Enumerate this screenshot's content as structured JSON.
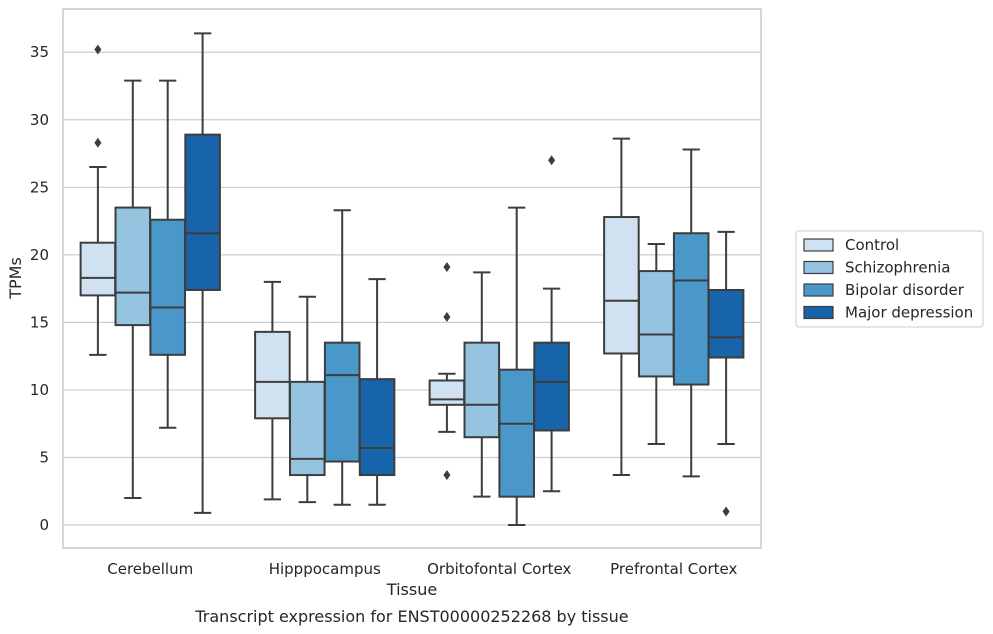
{
  "chart_data": {
    "type": "box",
    "xlabel": "Tissue",
    "ylabel": "TPMs",
    "caption": "Transcript expression for ENST00000252268 by tissue",
    "categories": [
      "Cerebellum",
      "Hipppocampus",
      "Orbitofontal Cortex",
      "Prefrontal Cortex"
    ],
    "ylim": [
      -1.7,
      38.2
    ],
    "yticks": [
      0,
      5,
      10,
      15,
      20,
      25,
      30,
      35
    ],
    "grid": "horizontal",
    "legend_position": "right",
    "series": [
      {
        "name": "Control",
        "color": "#d0e1f2",
        "boxes": [
          {
            "whislo": 12.6,
            "q1": 17.0,
            "med": 18.3,
            "q3": 20.9,
            "whishi": 26.5,
            "fliers": [
              28.3,
              35.2
            ]
          },
          {
            "whislo": 1.9,
            "q1": 7.9,
            "med": 10.6,
            "q3": 14.3,
            "whishi": 18.0,
            "fliers": []
          },
          {
            "whislo": 6.9,
            "q1": 8.9,
            "med": 9.3,
            "q3": 10.7,
            "whishi": 11.2,
            "fliers": [
              3.7,
              15.4,
              19.1
            ]
          },
          {
            "whislo": 3.7,
            "q1": 12.7,
            "med": 16.6,
            "q3": 22.8,
            "whishi": 28.6,
            "fliers": []
          }
        ]
      },
      {
        "name": "Schizophrenia",
        "color": "#94c4df",
        "boxes": [
          {
            "whislo": 2.0,
            "q1": 14.8,
            "med": 17.2,
            "q3": 23.5,
            "whishi": 32.9,
            "fliers": []
          },
          {
            "whislo": 1.7,
            "q1": 3.7,
            "med": 4.9,
            "q3": 10.6,
            "whishi": 16.9,
            "fliers": []
          },
          {
            "whislo": 2.1,
            "q1": 6.5,
            "med": 8.9,
            "q3": 13.5,
            "whishi": 18.7,
            "fliers": []
          },
          {
            "whislo": 6.0,
            "q1": 11.0,
            "med": 14.1,
            "q3": 18.8,
            "whishi": 20.8,
            "fliers": []
          }
        ]
      },
      {
        "name": "Bipolar disorder",
        "color": "#4a98c9",
        "boxes": [
          {
            "whislo": 7.2,
            "q1": 12.6,
            "med": 16.1,
            "q3": 22.6,
            "whishi": 32.9,
            "fliers": []
          },
          {
            "whislo": 1.5,
            "q1": 4.7,
            "med": 11.1,
            "q3": 13.5,
            "whishi": 23.3,
            "fliers": []
          },
          {
            "whislo": 0.0,
            "q1": 2.1,
            "med": 7.5,
            "q3": 11.5,
            "whishi": 23.5,
            "fliers": []
          },
          {
            "whislo": 3.6,
            "q1": 10.4,
            "med": 18.1,
            "q3": 21.6,
            "whishi": 27.8,
            "fliers": []
          }
        ]
      },
      {
        "name": "Major depression",
        "color": "#1764ab",
        "boxes": [
          {
            "whislo": 0.9,
            "q1": 17.4,
            "med": 21.6,
            "q3": 28.9,
            "whishi": 36.4,
            "fliers": []
          },
          {
            "whislo": 1.5,
            "q1": 3.7,
            "med": 5.7,
            "q3": 10.8,
            "whishi": 18.2,
            "fliers": []
          },
          {
            "whislo": 2.5,
            "q1": 7.0,
            "med": 10.6,
            "q3": 13.5,
            "whishi": 17.5,
            "fliers": [
              27.0
            ]
          },
          {
            "whislo": 6.0,
            "q1": 12.4,
            "med": 13.9,
            "q3": 17.4,
            "whishi": 21.7,
            "fliers": [
              1.0
            ]
          }
        ]
      }
    ]
  }
}
